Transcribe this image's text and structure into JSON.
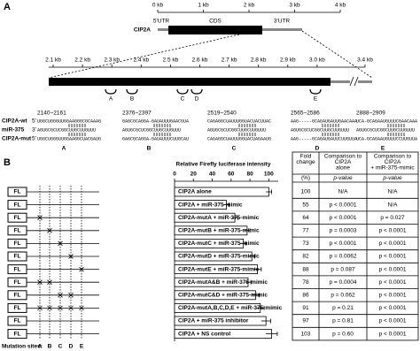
{
  "chart_data": {
    "type": "bar",
    "title": "Relative Firefly luciferase intensity",
    "categories": [
      "CIP2A alone",
      "CIP2A + miR-375-mimic",
      "CIP2A-mutA + miR-375-mimic",
      "CIP2A-mutB + miR-375-mimic",
      "CIP2A-mutC + miR-375-mimic",
      "CIP2A-mutD + miR-375-mimic",
      "CIP2A-mutE + miR-375-mimic",
      "CIP2A-mutA&B + miR-375-mimic",
      "CIP2A-mutC&D + miR-375-mimic",
      "CIP2A-mutA,B,C,D,E + miR-375-mimic",
      "CIP2A + miR-375 inhibitor",
      "CIP2A + NS control"
    ],
    "values": [
      100,
      55,
      64,
      77,
      73,
      82,
      88,
      78,
      86,
      91,
      97,
      103
    ],
    "errors": [
      3,
      3,
      3,
      3,
      3,
      3,
      4,
      3,
      4,
      4,
      5,
      6
    ],
    "color": "#ffffff",
    "xlim": [
      0,
      110
    ],
    "xticks": [
      0,
      20,
      40,
      60,
      80,
      100
    ]
  },
  "figure": {
    "panel_a": {
      "label": "A",
      "overview_ticks": [
        {
          "value": 0,
          "label": "0 kb"
        },
        {
          "value": 1,
          "label": "1 kb"
        },
        {
          "value": 2,
          "label": "2 kb"
        },
        {
          "value": 3,
          "label": "3 kb"
        },
        {
          "value": 4,
          "label": "4 kb"
        }
      ],
      "regions": [
        "5'UTR",
        "CDS",
        "3'UTR"
      ],
      "gene": "CIP2A",
      "zoom_ticks": [
        {
          "value": 2.1,
          "label": "2.1 kb"
        },
        {
          "value": 2.2,
          "label": "2.2 kb"
        },
        {
          "value": 2.3,
          "label": "2.3 kb"
        },
        {
          "value": 2.4,
          "label": "2.4 kb"
        },
        {
          "value": 2.5,
          "label": "2.5 kb"
        },
        {
          "value": 2.6,
          "label": "2.6 kb"
        },
        {
          "value": 2.7,
          "label": "2.7 kb"
        },
        {
          "value": 2.8,
          "label": "2.8 kb"
        },
        {
          "value": 2.9,
          "label": "2.9 kb"
        },
        {
          "value": 3.0,
          "label": "3.0 kb"
        },
        {
          "value": 3.4,
          "label": "3.4 kb"
        }
      ],
      "rows": [
        "CIP2A-wt",
        "miR-375",
        "CIP2A-mut"
      ],
      "row_ends": [
        "5'",
        "3'",
        "5'"
      ],
      "sites": [
        {
          "label": "A",
          "position": "2140~2161",
          "wt": "UGGCUGGGUUGGAAGGGCGCAAAG",
          "mir": "AGUGCGCUCGGCUUGCUUGUUU",
          "mut": "UGGCUGGGUUGGAAGGCUACGAUG"
        },
        {
          "label": "B",
          "position": "2376~2397",
          "wt": "GAGCGCAGGA-GAUAUUUGAACGUA",
          "mir": "AGUGCGCUCGGCUUGCUUGUUU",
          "mut": "GAGCGCAGGA-GAUAUUUCUUGCAU"
        },
        {
          "label": "C",
          "position": "2519~2540",
          "wt": "CAGAGGCUAUUUGGUACUACUUAC",
          "mir": "AGUGCGCUCGGCUUGCUUGUUU",
          "mut": "CAGAGGCUAUUUGGUACUAGAAUG"
        },
        {
          "label": "D",
          "position": "2565~2586",
          "wt": "AAG-----GCAGAUGAUUGAACAAA",
          "mir": "AGUGCGCUCGGCUUGCUUGUUU",
          "mut": "AAG-----GCAGAUGAUUCUUGUUA"
        },
        {
          "label": "E",
          "position": "2888~2909",
          "wt": "UCA-GCAGAAUGUUUCGAACAAA",
          "mir": "AGUGCGCUCGGCUUGCUUGUUU",
          "mut": "UCA-GCAGAAUGUUUCCUUGUUA"
        }
      ]
    },
    "panel_b": {
      "label": "B",
      "construct": "FL",
      "mutation_label": "Mutation sites:",
      "site_letters": [
        "A",
        "B",
        "C",
        "D",
        "E"
      ],
      "table": {
        "columns": [
          {
            "title": [
              "Fold",
              "change"
            ],
            "sub": "(%)"
          },
          {
            "title": [
              "Comparison to",
              "CIP2A",
              "alone"
            ],
            "sub": "p-value"
          },
          {
            "title": [
              "Comparison to",
              "CIP2A",
              "+ miR-375-mimic"
            ],
            "sub": "p-value"
          }
        ],
        "rows": [
          [
            100,
            "N/A",
            "N/A"
          ],
          [
            55,
            "p < 0.0001",
            "N/A"
          ],
          [
            64,
            "p < 0.0001",
            "p = 0.027"
          ],
          [
            77,
            "p = 0.0003",
            "p < 0.0001"
          ],
          [
            73,
            "p < 0.0001",
            "p < 0.0001"
          ],
          [
            82,
            "p = 0.0062",
            "p < 0.0001"
          ],
          [
            88,
            "p = 0.087",
            "p < 0.0001"
          ],
          [
            78,
            "p = 0.0004",
            "p < 0.0001"
          ],
          [
            86,
            "p = 0.062",
            "p < 0.0001"
          ],
          [
            91,
            "p = 0.21",
            "p < 0.0001"
          ],
          [
            97,
            "p = 0.81",
            "p < 0.0001"
          ],
          [
            103,
            "p = 0.60",
            "p < 0.0001"
          ]
        ]
      }
    }
  }
}
